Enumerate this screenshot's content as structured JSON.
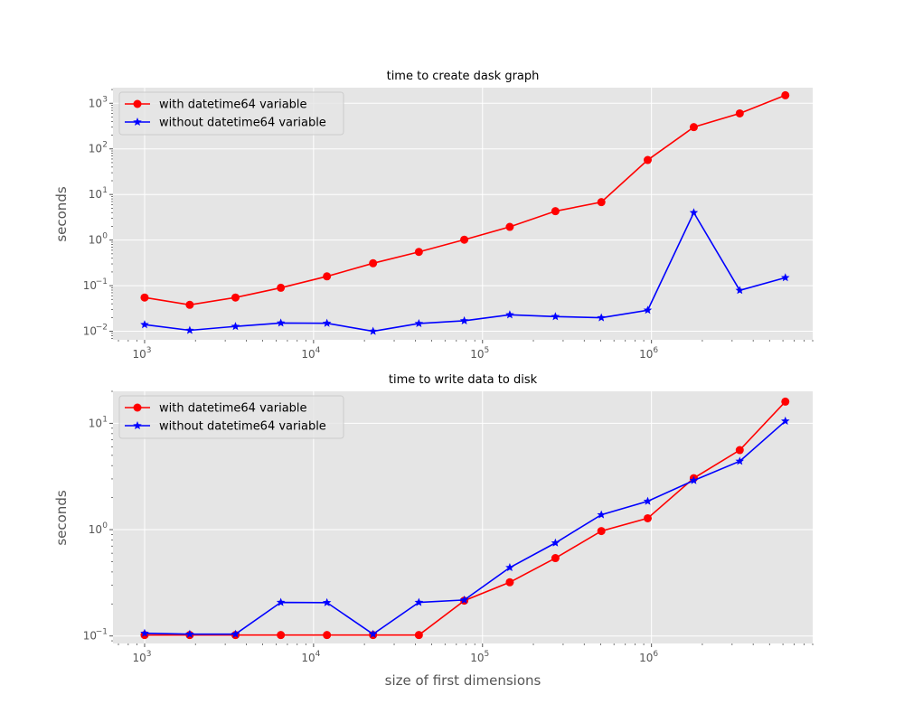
{
  "chart_data": [
    {
      "type": "line",
      "title": "time to create dask graph",
      "xlabel": "",
      "ylabel": "seconds",
      "xscale": "log",
      "yscale": "log",
      "xlim": [
        650,
        9000000
      ],
      "ylim": [
        0.0065,
        2200
      ],
      "x_ticks": [
        {
          "value": 1000,
          "base": "10",
          "exp": "3"
        },
        {
          "value": 10000,
          "base": "10",
          "exp": "4"
        },
        {
          "value": 100000,
          "base": "10",
          "exp": "5"
        },
        {
          "value": 1000000,
          "base": "10",
          "exp": "6"
        }
      ],
      "y_ticks": [
        {
          "value": 0.01,
          "base": "10",
          "exp": "−2"
        },
        {
          "value": 0.1,
          "base": "10",
          "exp": "−1"
        },
        {
          "value": 1,
          "base": "10",
          "exp": "0"
        },
        {
          "value": 10,
          "base": "10",
          "exp": "1"
        },
        {
          "value": 100,
          "base": "10",
          "exp": "2"
        },
        {
          "value": 1000,
          "base": "10",
          "exp": "3"
        }
      ],
      "grid": true,
      "legend_position": "top-left",
      "x": [
        1000,
        1850,
        3450,
        6400,
        12000,
        22500,
        42000,
        78000,
        145000,
        270000,
        505000,
        950000,
        1780000,
        3330000,
        6200000
      ],
      "series": [
        {
          "name": "with datetime64 variable",
          "color": "#ff0000",
          "marker": "circle",
          "values": [
            0.055,
            0.038,
            0.055,
            0.09,
            0.16,
            0.31,
            0.55,
            1.02,
            1.95,
            4.3,
            6.8,
            57,
            300,
            600,
            1500
          ]
        },
        {
          "name": "without datetime64 variable",
          "color": "#0000ff",
          "marker": "star",
          "values": [
            0.014,
            0.0105,
            0.0128,
            0.0152,
            0.015,
            0.01,
            0.0148,
            0.017,
            0.023,
            0.021,
            0.0198,
            0.029,
            4.0,
            0.079,
            0.15
          ]
        }
      ]
    },
    {
      "type": "line",
      "title": "time to write data to disk",
      "xlabel": "size of first dimensions",
      "ylabel": "seconds",
      "xscale": "log",
      "yscale": "log",
      "xlim": [
        650,
        9000000
      ],
      "ylim": [
        0.085,
        20
      ],
      "x_ticks": [
        {
          "value": 1000,
          "base": "10",
          "exp": "3"
        },
        {
          "value": 10000,
          "base": "10",
          "exp": "4"
        },
        {
          "value": 100000,
          "base": "10",
          "exp": "5"
        },
        {
          "value": 1000000,
          "base": "10",
          "exp": "6"
        }
      ],
      "y_ticks": [
        {
          "value": 0.1,
          "base": "10",
          "exp": "−1"
        },
        {
          "value": 1,
          "base": "10",
          "exp": "0"
        },
        {
          "value": 10,
          "base": "10",
          "exp": "1"
        }
      ],
      "grid": true,
      "legend_position": "top-left",
      "x": [
        1000,
        1850,
        3450,
        6400,
        12000,
        22500,
        42000,
        78000,
        145000,
        270000,
        505000,
        950000,
        1780000,
        3330000,
        6200000
      ],
      "series": [
        {
          "name": "with datetime64 variable",
          "color": "#ff0000",
          "marker": "circle",
          "values": [
            0.102,
            0.102,
            0.102,
            0.102,
            0.102,
            0.102,
            0.102,
            0.215,
            0.32,
            0.54,
            0.97,
            1.28,
            3.05,
            5.6,
            16
          ]
        },
        {
          "name": "without datetime64 variable",
          "color": "#0000ff",
          "marker": "star",
          "values": [
            0.106,
            0.104,
            0.104,
            0.207,
            0.206,
            0.104,
            0.207,
            0.218,
            0.44,
            0.75,
            1.38,
            1.85,
            2.9,
            4.4,
            10.5
          ]
        }
      ]
    }
  ]
}
